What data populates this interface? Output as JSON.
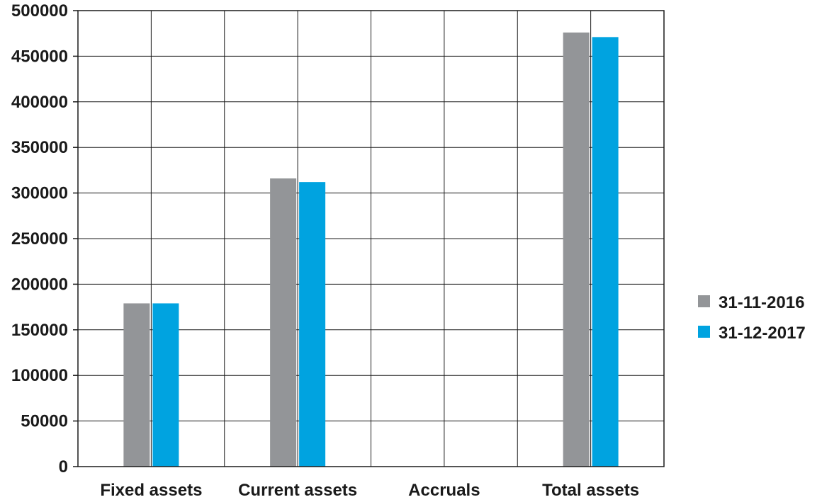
{
  "chart_data": {
    "type": "bar",
    "title": "",
    "xlabel": "",
    "ylabel": "",
    "categories": [
      "Fixed assets",
      "Current assets",
      "Accruals",
      "Total assets"
    ],
    "series": [
      {
        "name": "31-11-2016",
        "color": "#939598",
        "values": [
          179000,
          316000,
          0,
          476000
        ]
      },
      {
        "name": "31-12-2017",
        "color": "#00a3e0",
        "values": [
          179000,
          312000,
          0,
          471000
        ]
      }
    ],
    "ylim": [
      0,
      500000
    ],
    "yticks": [
      "0",
      "50000",
      "100000",
      "150000",
      "200000",
      "250000",
      "300000",
      "350000",
      "400000",
      "450000",
      "500000"
    ],
    "grid": true,
    "legend": "right"
  }
}
